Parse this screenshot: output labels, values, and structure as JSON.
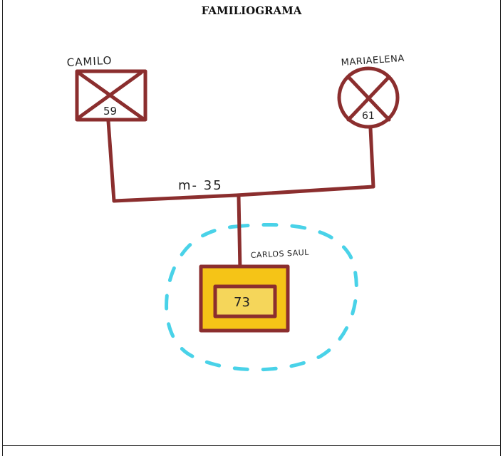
{
  "title": "FAMILIOGRAMA",
  "colors": {
    "ink": "#8b2e2e",
    "highlight": "#f5c417",
    "emotional_boundary": "#49d2e8",
    "text": "#1a1a1a"
  },
  "diagram": {
    "father": {
      "name": "CAMILO",
      "age": "59",
      "symbol": "square-crossed",
      "status": "deceased"
    },
    "mother": {
      "name": "MARIAELENA",
      "age": "61",
      "symbol": "circle-crossed",
      "status": "deceased"
    },
    "relationship": {
      "label": "m- 35"
    },
    "index_person": {
      "name": "CARLOS SAUL",
      "age": "73",
      "symbol": "square-highlighted"
    }
  }
}
